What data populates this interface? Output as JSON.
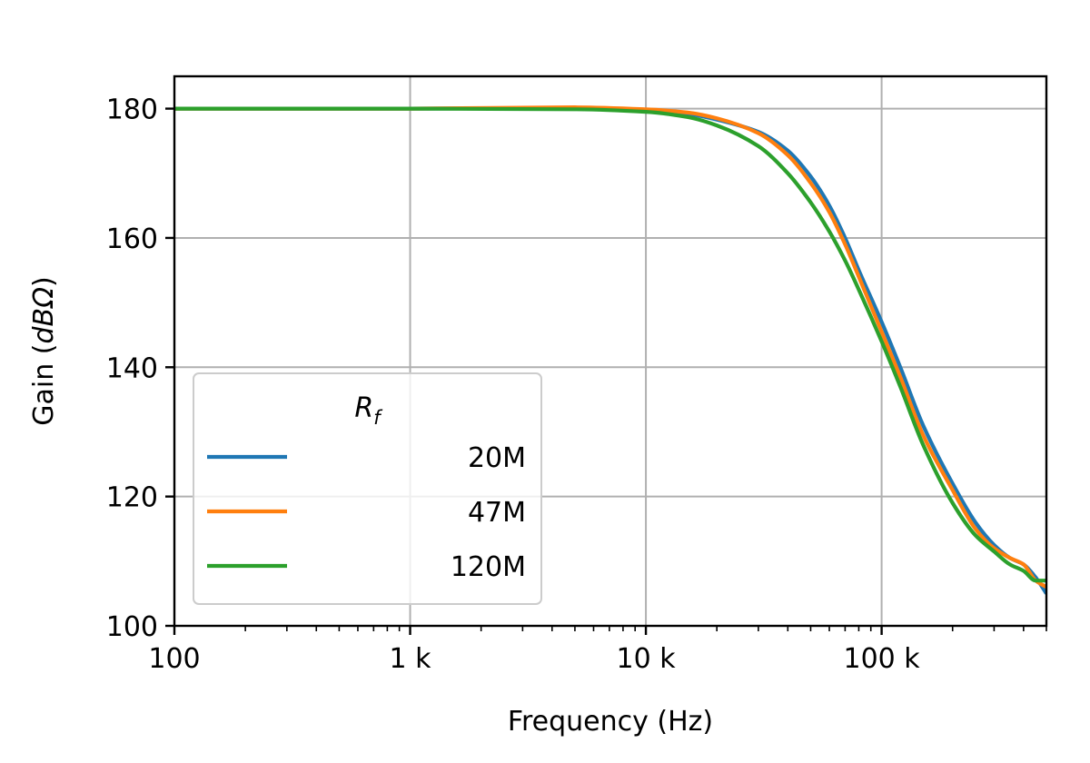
{
  "chart_data": {
    "type": "line",
    "title": "",
    "xlabel": "Frequency (Hz)",
    "ylabel_prefix": "Gain (",
    "ylabel_math": "dBΩ",
    "ylabel_suffix": ")",
    "xscale": "log",
    "xlim": [
      100,
      500000
    ],
    "ylim": [
      100,
      185
    ],
    "grid": true,
    "x_ticks": [
      {
        "value": 100,
        "label": "100"
      },
      {
        "value": 1000,
        "label": "1 k"
      },
      {
        "value": 10000,
        "label": "10 k"
      },
      {
        "value": 100000,
        "label": "100 k"
      }
    ],
    "y_ticks": [
      {
        "value": 100,
        "label": "100"
      },
      {
        "value": 120,
        "label": "120"
      },
      {
        "value": 140,
        "label": "140"
      },
      {
        "value": 160,
        "label": "160"
      },
      {
        "value": 180,
        "label": "180"
      }
    ],
    "legend": {
      "title_main": "R",
      "title_sub": "f",
      "placement": "lower-left"
    },
    "series": [
      {
        "name": "20M",
        "color": "#1f77b4",
        "points": [
          [
            100,
            180
          ],
          [
            1000,
            180
          ],
          [
            5000,
            180.1
          ],
          [
            10000,
            179.8
          ],
          [
            15000,
            179.2
          ],
          [
            20000,
            178.3
          ],
          [
            30000,
            176.4
          ],
          [
            40000,
            173.5
          ],
          [
            50000,
            169.5
          ],
          [
            60000,
            165
          ],
          [
            70000,
            160
          ],
          [
            80000,
            155
          ],
          [
            100000,
            147
          ],
          [
            120000,
            140
          ],
          [
            150000,
            131
          ],
          [
            200000,
            122
          ],
          [
            250000,
            116
          ],
          [
            300000,
            112.5
          ],
          [
            350000,
            110.5
          ],
          [
            400000,
            109.5
          ],
          [
            450000,
            107.5
          ],
          [
            500000,
            105
          ]
        ]
      },
      {
        "name": "47M",
        "color": "#ff7f0e",
        "points": [
          [
            100,
            180
          ],
          [
            1000,
            180
          ],
          [
            5000,
            180.2
          ],
          [
            10000,
            179.9
          ],
          [
            15000,
            179.4
          ],
          [
            20000,
            178.5
          ],
          [
            30000,
            176.2
          ],
          [
            40000,
            172.8
          ],
          [
            50000,
            168.5
          ],
          [
            60000,
            164
          ],
          [
            70000,
            159
          ],
          [
            80000,
            154
          ],
          [
            100000,
            145.5
          ],
          [
            120000,
            138.5
          ],
          [
            150000,
            129.5
          ],
          [
            200000,
            121
          ],
          [
            250000,
            115
          ],
          [
            300000,
            112
          ],
          [
            350000,
            110.5
          ],
          [
            400000,
            109.5
          ],
          [
            450000,
            107
          ],
          [
            500000,
            106
          ]
        ]
      },
      {
        "name": "120M",
        "color": "#2ca02c",
        "points": [
          [
            100,
            180
          ],
          [
            1000,
            180
          ],
          [
            5000,
            179.9
          ],
          [
            10000,
            179.5
          ],
          [
            15000,
            178.7
          ],
          [
            20000,
            177.4
          ],
          [
            30000,
            174.2
          ],
          [
            40000,
            170
          ],
          [
            50000,
            165.5
          ],
          [
            60000,
            161
          ],
          [
            70000,
            156.5
          ],
          [
            80000,
            152
          ],
          [
            100000,
            144
          ],
          [
            120000,
            137
          ],
          [
            150000,
            128
          ],
          [
            200000,
            119
          ],
          [
            250000,
            114
          ],
          [
            300000,
            111.5
          ],
          [
            350000,
            109.5
          ],
          [
            400000,
            108.5
          ],
          [
            450000,
            107
          ],
          [
            500000,
            107
          ]
        ]
      }
    ]
  }
}
